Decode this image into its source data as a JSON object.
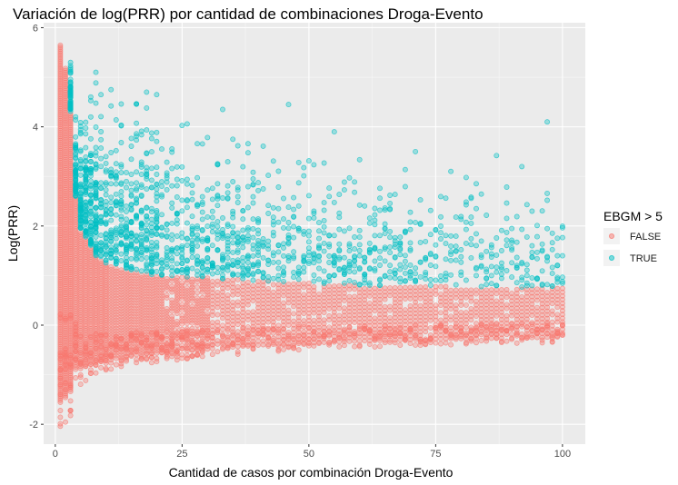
{
  "chart_data": {
    "type": "scatter",
    "title": "Variación de log(PRR) por cantidad de combinaciones Droga-Evento",
    "xlabel": "Cantidad de casos por combinación Droga-Evento",
    "ylabel": "Log(PRR)",
    "xlim": [
      -2.3,
      104.5
    ],
    "ylim": [
      -2.4,
      6.1
    ],
    "x_ticks": [
      0,
      25,
      50,
      75,
      100
    ],
    "x_tick_labels": [
      "0",
      "25",
      "50",
      "75",
      "100"
    ],
    "y_ticks": [
      -2,
      0,
      2,
      4,
      6
    ],
    "y_tick_labels": [
      "-2",
      "0",
      "2",
      "4",
      "6"
    ],
    "grid": true,
    "legend": {
      "title": "EBGM > 5",
      "placement": "right",
      "entries": [
        "FALSE",
        "TRUE"
      ]
    },
    "series": [
      {
        "name": "FALSE",
        "color": "#F8766D",
        "envelope": [
          {
            "x": 1,
            "low": -2.4,
            "high": 5.65
          },
          {
            "x": 2,
            "low": -2.2,
            "high": 5.2
          },
          {
            "x": 3,
            "low": -2.0,
            "high": 4.3
          },
          {
            "x": 4,
            "low": -1.3,
            "high": 2.6
          },
          {
            "x": 5,
            "low": -1.2,
            "high": 1.9
          },
          {
            "x": 8,
            "low": -1.0,
            "high": 1.4
          },
          {
            "x": 10,
            "low": -0.95,
            "high": 1.25
          },
          {
            "x": 15,
            "low": -0.8,
            "high": 1.1
          },
          {
            "x": 20,
            "low": -0.75,
            "high": 1.0
          },
          {
            "x": 30,
            "low": -0.65,
            "high": 0.95
          },
          {
            "x": 40,
            "low": -0.55,
            "high": 0.9
          },
          {
            "x": 50,
            "low": -0.5,
            "high": 0.85
          },
          {
            "x": 60,
            "low": -0.45,
            "high": 0.8
          },
          {
            "x": 75,
            "low": -0.4,
            "high": 0.78
          },
          {
            "x": 90,
            "low": -0.38,
            "high": 0.76
          },
          {
            "x": 100,
            "low": -0.35,
            "high": 0.75
          }
        ]
      },
      {
        "name": "TRUE",
        "color": "#00BFC4",
        "envelope": [
          {
            "x": 3,
            "low": 4.3,
            "high": 5.3
          },
          {
            "x": 4,
            "low": 2.6,
            "high": 4.2
          },
          {
            "x": 5,
            "low": 1.9,
            "high": 4.5
          },
          {
            "x": 8,
            "low": 1.4,
            "high": 4.9
          },
          {
            "x": 10,
            "low": 1.25,
            "high": 4.4
          },
          {
            "x": 15,
            "low": 1.1,
            "high": 4.5
          },
          {
            "x": 20,
            "low": 1.0,
            "high": 4.3
          },
          {
            "x": 30,
            "low": 0.95,
            "high": 3.9
          },
          {
            "x": 40,
            "low": 0.9,
            "high": 3.6
          },
          {
            "x": 50,
            "low": 0.85,
            "high": 3.7
          },
          {
            "x": 60,
            "low": 0.8,
            "high": 3.5
          },
          {
            "x": 75,
            "low": 0.78,
            "high": 3.5
          },
          {
            "x": 90,
            "low": 0.76,
            "high": 3.4
          },
          {
            "x": 100,
            "low": 0.75,
            "high": 3.0
          }
        ],
        "outliers": [
          {
            "x": 8,
            "y": 5.1
          },
          {
            "x": 11,
            "y": 4.75
          },
          {
            "x": 18,
            "y": 4.7
          },
          {
            "x": 20,
            "y": 4.65
          },
          {
            "x": 33,
            "y": 4.35
          },
          {
            "x": 46,
            "y": 4.45
          },
          {
            "x": 55,
            "y": 3.9
          },
          {
            "x": 97,
            "y": 4.1
          }
        ]
      }
    ]
  }
}
